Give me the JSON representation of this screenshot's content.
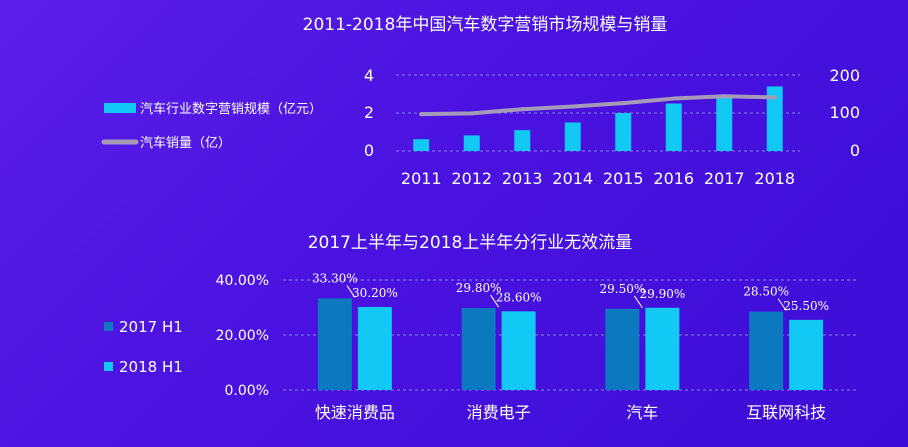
{
  "colors": {
    "bar_light": "#12c8f5",
    "bar_dark": "#0b78c0",
    "line": "#a79ab8",
    "grid": "#8e7fe6"
  },
  "chart_data": [
    {
      "type": "bar",
      "title": "2011-2018年中国汽车数字营销市场规模与销量",
      "categories": [
        "2011",
        "2012",
        "2013",
        "2014",
        "2015",
        "2016",
        "2017",
        "2018"
      ],
      "left_axis": {
        "ticks": [
          "0",
          "2",
          "4"
        ],
        "ylim": [
          0,
          4
        ]
      },
      "right_axis": {
        "ticks": [
          "0",
          "100",
          "200"
        ],
        "ylim": [
          0,
          200
        ]
      },
      "series": [
        {
          "name": "汽车行业数字营销规模（亿元）",
          "type": "bar",
          "axis": "left",
          "values": [
            0.62,
            0.82,
            1.1,
            1.5,
            2.0,
            2.5,
            2.9,
            3.4
          ]
        },
        {
          "name": "汽车销量（亿）",
          "type": "line",
          "axis": "right",
          "values": [
            97,
            99,
            110,
            117,
            126,
            138,
            144,
            141
          ]
        }
      ],
      "legend_position": "left",
      "grid": true
    },
    {
      "type": "bar",
      "title": "2017上半年与2018上半年分行业无效流量",
      "categories": [
        "快速消费品",
        "消费电子",
        "汽车",
        "互联网科技"
      ],
      "y_ticks": [
        "0.00%",
        "20.00%",
        "40.00%"
      ],
      "ylim": [
        0,
        40
      ],
      "series": [
        {
          "name": "2017 H1",
          "values": [
            33.3,
            29.8,
            29.5,
            28.5
          ],
          "labels": [
            "33.30%",
            "29.80%",
            "29.50%",
            "28.50%"
          ]
        },
        {
          "name": "2018 H1",
          "values": [
            30.2,
            28.6,
            29.9,
            25.5
          ],
          "labels": [
            "30.20%",
            "28.60%",
            "29.90%",
            "25.50%"
          ]
        }
      ],
      "legend_position": "left",
      "grid": true
    }
  ]
}
